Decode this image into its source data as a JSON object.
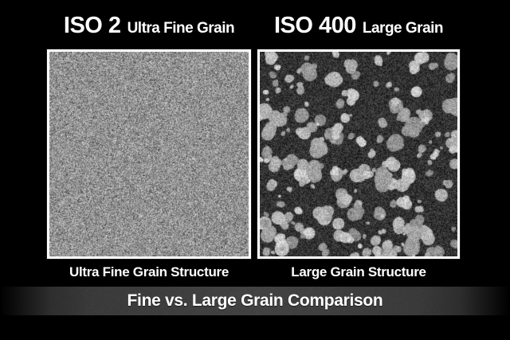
{
  "panels": [
    {
      "title_main": "ISO 2",
      "title_sub": "Ultra Fine Grain",
      "caption": "Ultra Fine Grain Structure",
      "texture": "fine"
    },
    {
      "title_main": "ISO 400",
      "title_sub": "Large Grain",
      "caption": "Large Grain Structure",
      "texture": "large"
    }
  ],
  "banner": {
    "label": "Fine vs. Large Grain Comparison"
  },
  "colors": {
    "background": "#000000",
    "text": "#ffffff",
    "panel_border": "#ffffff",
    "banner_background": "#3d3d3d",
    "fine_grain_base": "#929292",
    "large_grain_background": "#323232",
    "large_grain_blob": "#b4b4b4"
  }
}
